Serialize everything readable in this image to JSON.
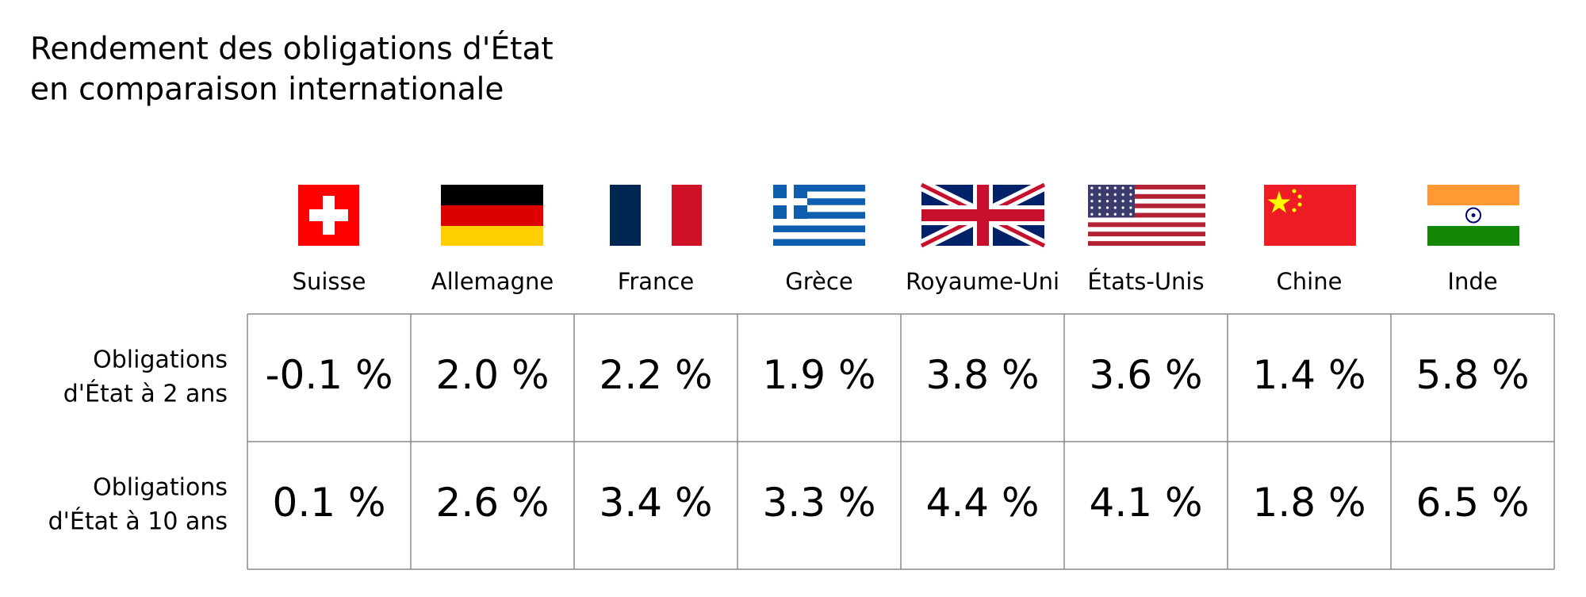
{
  "header": {
    "title": [
      "Rendement des obligations d'État",
      "en comparaison internationale"
    ]
  },
  "table": {
    "columns": [
      "Suisse",
      "Allemagne",
      "France",
      "Grèce",
      "Royaume-Uni",
      "États-Unis",
      "Chine",
      "Inde"
    ],
    "rows": [
      {
        "label": [
          "Obligations",
          "d'État à 2 ans"
        ],
        "cells": [
          "-0.1 %",
          "2.0 %",
          "2.2 %",
          "1.9 %",
          "3.8 %",
          "3.6 %",
          "1.4 %",
          "5.8 %"
        ]
      },
      {
        "label": [
          "Obligations",
          "d'État à 10 ans"
        ],
        "cells": [
          "0.1 %",
          "2.6 %",
          "3.4 %",
          "3.3 %",
          "4.4 %",
          "4.1 %",
          "1.8 %",
          "6.5 %"
        ]
      }
    ]
  }
}
